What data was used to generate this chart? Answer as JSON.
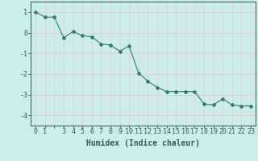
{
  "x": [
    0,
    1,
    2,
    3,
    4,
    5,
    6,
    7,
    8,
    9,
    10,
    11,
    12,
    13,
    14,
    15,
    16,
    17,
    18,
    19,
    20,
    21,
    22,
    23
  ],
  "y": [
    1.0,
    0.75,
    0.75,
    -0.25,
    0.05,
    -0.15,
    -0.2,
    -0.55,
    -0.6,
    -0.9,
    -0.65,
    -1.95,
    -2.35,
    -2.65,
    -2.85,
    -2.85,
    -2.85,
    -2.85,
    -3.45,
    -3.5,
    -3.2,
    -3.5,
    -3.55,
    -3.55
  ],
  "line_color": "#2e7d6e",
  "marker": "D",
  "marker_size": 2,
  "bg_color": "#cceee8",
  "grid_color": "#f0c8c8",
  "xlabel": "Humidex (Indice chaleur)",
  "xlim": [
    -0.5,
    23.5
  ],
  "ylim": [
    -4.5,
    1.5
  ],
  "yticks": [
    1,
    0,
    -1,
    -2,
    -3,
    -4
  ],
  "xtick_labels": [
    "0",
    "1",
    "",
    "3",
    "4",
    "5",
    "6",
    "7",
    "8",
    "9",
    "10",
    "11",
    "12",
    "13",
    "14",
    "15",
    "16",
    "17",
    "18",
    "19",
    "20",
    "21",
    "22",
    "23"
  ],
  "axis_color": "#3a6b60",
  "font_color": "#2e5d54",
  "tick_fontsize": 6,
  "xlabel_fontsize": 7
}
